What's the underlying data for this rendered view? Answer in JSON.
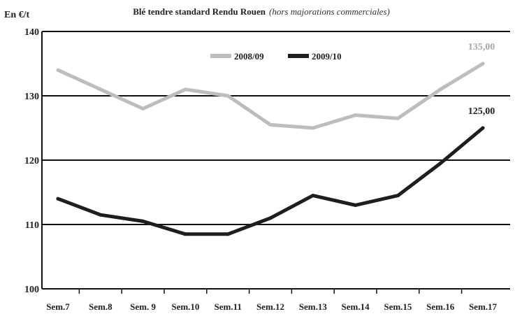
{
  "chart_data": {
    "type": "line",
    "title": "Blé tendre standard Rendu Rouen",
    "subtitle": "(hors majorations commerciales)",
    "ylabel": "En €/t",
    "xlabel": "",
    "ylim": [
      100,
      140
    ],
    "yticks": [
      "100",
      "110",
      "120",
      "130",
      "140"
    ],
    "categories": [
      "Sem.7",
      "Sem.8",
      "Sem. 9",
      "Sem.10",
      "Sem.11",
      "Sem.12",
      "Sem.13",
      "Sem.14",
      "Sem.15",
      "Sem.16",
      "Sem.17"
    ],
    "grid": "horizontal",
    "legend_position": "top-center",
    "series": [
      {
        "name": "2008/09",
        "color": "#bdbdbd",
        "values": [
          134,
          131,
          128,
          131,
          130,
          125.5,
          125,
          127,
          126.5,
          131,
          135
        ],
        "end_label": "135,00"
      },
      {
        "name": "2009/10",
        "color": "#1e1e1e",
        "values": [
          114,
          111.5,
          110.5,
          108.5,
          108.5,
          111,
          114.5,
          113,
          114.5,
          119.5,
          125
        ],
        "end_label": "125,00"
      }
    ]
  }
}
